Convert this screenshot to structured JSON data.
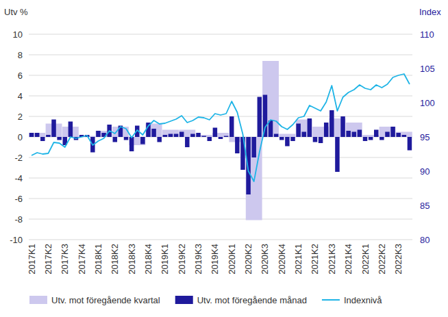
{
  "chart_data": {
    "type": "bar",
    "y_label": "Utv %",
    "y2_label": "Index",
    "categories": [
      "2017K1",
      null,
      null,
      "2017K2",
      null,
      null,
      "2017K3",
      null,
      null,
      "2017K4",
      null,
      null,
      "2018K1",
      null,
      null,
      "2018K2",
      null,
      null,
      "2018K3",
      null,
      null,
      "2018K4",
      null,
      null,
      "2019K1",
      null,
      null,
      "2019K2",
      null,
      null,
      "2019K3",
      null,
      null,
      "2019K4",
      null,
      null,
      "2020K1",
      null,
      null,
      "2020K2",
      null,
      null,
      "2020K3",
      null,
      null,
      "2020K4",
      null,
      null,
      "2021K1",
      null,
      null,
      "2021K2",
      null,
      null,
      "2021K3",
      null,
      null,
      "2021K4",
      null,
      null,
      "2022K1",
      null,
      null,
      "2022K2",
      null,
      null,
      "2022K3",
      null,
      null
    ],
    "series": [
      {
        "name": "Utv. mot föregående kvartal",
        "type": "bar",
        "color": "#cdc8ee",
        "values": [
          null,
          0.4,
          null,
          null,
          1.3,
          null,
          null,
          1.0,
          null,
          null,
          0.1,
          null,
          null,
          0.6,
          null,
          null,
          1.0,
          null,
          null,
          -0.8,
          null,
          null,
          1.3,
          null,
          null,
          0.7,
          null,
          null,
          0.7,
          null,
          null,
          0.2,
          null,
          null,
          0.4,
          null,
          null,
          -0.5,
          null,
          null,
          -8.1,
          null,
          null,
          7.4,
          null,
          null,
          0.3,
          null,
          null,
          1.7,
          null,
          null,
          1.0,
          null,
          null,
          1.8,
          null,
          null,
          1.4,
          null,
          null,
          0.2,
          null,
          null,
          1.0,
          null,
          null,
          0.5,
          null
        ]
      },
      {
        "name": "Utv. mot föregående månad",
        "type": "bar",
        "color": "#1f1a9c",
        "values": [
          0.4,
          0.4,
          -0.4,
          0.2,
          1.7,
          -0.3,
          -0.8,
          1.5,
          -0.3,
          0.2,
          0.2,
          -1.5,
          0.6,
          0.4,
          1.2,
          -0.5,
          1.1,
          -0.3,
          -1.4,
          1.1,
          -0.7,
          1.4,
          0.8,
          -0.5,
          0.2,
          0.3,
          0.3,
          0.5,
          -1.0,
          0.3,
          0.4,
          0.1,
          -0.4,
          0.9,
          -0.2,
          0.1,
          2.0,
          -1.6,
          -3.2,
          -5.6,
          -2.0,
          3.9,
          4.1,
          1.6,
          0.3,
          -0.3,
          -0.9,
          -0.4,
          1.3,
          0.5,
          1.8,
          -0.5,
          -0.6,
          1.4,
          2.6,
          -3.4,
          2.0,
          0.6,
          0.5,
          0.7,
          -0.4,
          -0.3,
          0.7,
          -0.3,
          0.5,
          1.0,
          0.4,
          0.2,
          -1.3
        ]
      },
      {
        "name": "Indexnivå",
        "type": "line",
        "axis": "y2",
        "color": "#1eb4e6",
        "values": [
          92.3,
          92.7,
          92.5,
          92.6,
          94.2,
          94.1,
          93.5,
          95.0,
          94.8,
          95.0,
          95.2,
          93.8,
          94.4,
          94.8,
          95.9,
          95.5,
          96.5,
          96.2,
          94.9,
          96.0,
          95.3,
          96.6,
          97.4,
          96.9,
          97.0,
          97.3,
          97.6,
          98.1,
          97.1,
          97.4,
          97.9,
          97.8,
          97.5,
          98.4,
          98.2,
          98.4,
          100.2,
          98.6,
          95.4,
          90.0,
          88.5,
          92.8,
          96.4,
          97.5,
          97.3,
          96.5,
          96.1,
          96.8,
          97.8,
          98.0,
          99.6,
          99.2,
          98.8,
          100.1,
          102.5,
          98.8,
          100.8,
          101.5,
          101.9,
          102.6,
          102.1,
          101.9,
          102.6,
          102.2,
          102.7,
          103.7,
          104.0,
          104.2,
          102.7
        ]
      }
    ],
    "ylim": [
      -10,
      10
    ],
    "yticks": [
      -10,
      -8,
      -6,
      -4,
      -2,
      0,
      2,
      4,
      6,
      8,
      10
    ],
    "y2lim": [
      80,
      110
    ],
    "y2ticks": [
      80,
      85,
      90,
      95,
      100,
      105,
      110
    ],
    "grid": true,
    "legend": "bottom"
  }
}
